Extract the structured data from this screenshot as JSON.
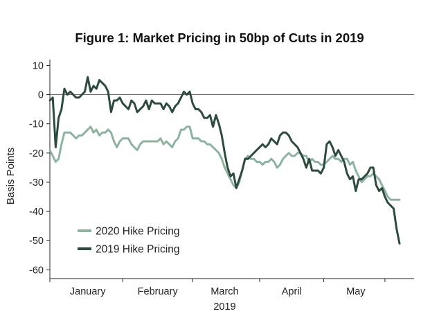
{
  "chart_data": {
    "type": "line",
    "title": "Figure 1: Market Pricing in 50bp of Cuts in 2019",
    "ylabel": "Basis Points",
    "xlabel": "2019",
    "ylim": [
      -63,
      12
    ],
    "yticks": [
      10,
      0,
      -10,
      -20,
      -30,
      -40,
      -50,
      -60
    ],
    "xlim": [
      0,
      125
    ],
    "x_categories": [
      {
        "label": "January",
        "center": 13
      },
      {
        "label": "February",
        "center": 37
      },
      {
        "label": "March",
        "center": 60
      },
      {
        "label": "April",
        "center": 83
      },
      {
        "label": "May",
        "center": 105
      }
    ],
    "x_ticks": [
      0,
      25,
      49,
      72,
      94,
      115
    ],
    "zero_line": true,
    "legend": {
      "position": "bottom-left",
      "entries": [
        "2020 Hike Pricing",
        "2019 Hike Pricing"
      ]
    },
    "series": [
      {
        "name": "2020 Hike Pricing",
        "color": "#8fb29f",
        "points": [
          [
            0,
            -19
          ],
          [
            1,
            -21
          ],
          [
            2,
            -23
          ],
          [
            3,
            -22
          ],
          [
            4,
            -17
          ],
          [
            5,
            -13
          ],
          [
            6,
            -13
          ],
          [
            7,
            -13
          ],
          [
            8,
            -14
          ],
          [
            9,
            -15
          ],
          [
            10,
            -14
          ],
          [
            11,
            -14
          ],
          [
            12,
            -13
          ],
          [
            13,
            -12
          ],
          [
            14,
            -11
          ],
          [
            15,
            -13
          ],
          [
            16,
            -12
          ],
          [
            17,
            -14
          ],
          [
            18,
            -13
          ],
          [
            19,
            -13
          ],
          [
            20,
            -12
          ],
          [
            21,
            -13
          ],
          [
            22,
            -16
          ],
          [
            23,
            -18
          ],
          [
            24,
            -16
          ],
          [
            25,
            -15
          ],
          [
            26,
            -15
          ],
          [
            27,
            -15
          ],
          [
            28,
            -17
          ],
          [
            29,
            -18
          ],
          [
            30,
            -19
          ],
          [
            31,
            -17
          ],
          [
            32,
            -16
          ],
          [
            33,
            -16
          ],
          [
            34,
            -16
          ],
          [
            35,
            -16
          ],
          [
            36,
            -16
          ],
          [
            37,
            -16
          ],
          [
            38,
            -15
          ],
          [
            39,
            -17
          ],
          [
            40,
            -16
          ],
          [
            41,
            -17
          ],
          [
            42,
            -18
          ],
          [
            43,
            -16
          ],
          [
            44,
            -15
          ],
          [
            45,
            -12
          ],
          [
            46,
            -12
          ],
          [
            47,
            -11
          ],
          [
            48,
            -11
          ],
          [
            49,
            -15
          ],
          [
            50,
            -15
          ],
          [
            51,
            -15
          ],
          [
            52,
            -16
          ],
          [
            53,
            -16
          ],
          [
            54,
            -17
          ],
          [
            55,
            -17
          ],
          [
            56,
            -18
          ],
          [
            57,
            -19
          ],
          [
            58,
            -20
          ],
          [
            59,
            -22
          ],
          [
            60,
            -25
          ],
          [
            61,
            -27
          ],
          [
            62,
            -29
          ],
          [
            63,
            -31
          ],
          [
            64,
            -32
          ],
          [
            65,
            -30
          ],
          [
            66,
            -26
          ],
          [
            67,
            -22
          ],
          [
            68,
            -21
          ],
          [
            69,
            -22
          ],
          [
            70,
            -22
          ],
          [
            71,
            -23
          ],
          [
            72,
            -23
          ],
          [
            73,
            -24
          ],
          [
            74,
            -23
          ],
          [
            75,
            -23
          ],
          [
            76,
            -22
          ],
          [
            77,
            -23
          ],
          [
            78,
            -25
          ],
          [
            79,
            -24
          ],
          [
            80,
            -22
          ],
          [
            81,
            -21
          ],
          [
            82,
            -20
          ],
          [
            83,
            -21
          ],
          [
            84,
            -21
          ],
          [
            85,
            -20
          ],
          [
            86,
            -20
          ],
          [
            87,
            -21
          ],
          [
            88,
            -21
          ],
          [
            89,
            -23
          ],
          [
            90,
            -22
          ],
          [
            91,
            -23
          ],
          [
            92,
            -23
          ],
          [
            93,
            -24
          ],
          [
            94,
            -24
          ],
          [
            95,
            -23
          ],
          [
            96,
            -22
          ],
          [
            97,
            -21
          ],
          [
            98,
            -22
          ],
          [
            99,
            -22
          ],
          [
            100,
            -23
          ],
          [
            101,
            -22
          ],
          [
            102,
            -22
          ],
          [
            103,
            -24
          ],
          [
            104,
            -23
          ],
          [
            105,
            -26
          ],
          [
            106,
            -28
          ],
          [
            107,
            -30
          ],
          [
            108,
            -29
          ],
          [
            109,
            -28
          ],
          [
            110,
            -28
          ],
          [
            111,
            -27
          ],
          [
            112,
            -28
          ],
          [
            113,
            -29
          ],
          [
            114,
            -31
          ],
          [
            115,
            -33
          ],
          [
            116,
            -35
          ],
          [
            117,
            -36
          ],
          [
            118,
            -36
          ],
          [
            119,
            -36
          ],
          [
            120,
            -36
          ]
        ]
      },
      {
        "name": "2019 Hike Pricing",
        "color": "#2e4a3d",
        "points": [
          [
            0,
            -2
          ],
          [
            1,
            -1
          ],
          [
            2,
            -18
          ],
          [
            3,
            -8
          ],
          [
            4,
            -5
          ],
          [
            5,
            2
          ],
          [
            6,
            0
          ],
          [
            7,
            1
          ],
          [
            8,
            0
          ],
          [
            9,
            -1
          ],
          [
            10,
            -1
          ],
          [
            11,
            0
          ],
          [
            12,
            1
          ],
          [
            13,
            6
          ],
          [
            14,
            1
          ],
          [
            15,
            3
          ],
          [
            16,
            2
          ],
          [
            17,
            5
          ],
          [
            18,
            4
          ],
          [
            19,
            3
          ],
          [
            20,
            1
          ],
          [
            21,
            -6
          ],
          [
            22,
            -2
          ],
          [
            23,
            -2
          ],
          [
            24,
            -1
          ],
          [
            25,
            -3
          ],
          [
            26,
            -4
          ],
          [
            27,
            -5
          ],
          [
            28,
            -2
          ],
          [
            29,
            -3
          ],
          [
            30,
            -6
          ],
          [
            31,
            -5
          ],
          [
            32,
            -4
          ],
          [
            33,
            -2
          ],
          [
            34,
            -5
          ],
          [
            35,
            -2
          ],
          [
            36,
            -3
          ],
          [
            37,
            -3
          ],
          [
            38,
            -3
          ],
          [
            39,
            -5
          ],
          [
            40,
            -3
          ],
          [
            41,
            -4
          ],
          [
            42,
            -6
          ],
          [
            43,
            -4
          ],
          [
            44,
            -3
          ],
          [
            45,
            -1
          ],
          [
            46,
            1
          ],
          [
            47,
            0
          ],
          [
            48,
            1
          ],
          [
            49,
            -3
          ],
          [
            50,
            -5
          ],
          [
            51,
            -5
          ],
          [
            52,
            -6
          ],
          [
            53,
            -8
          ],
          [
            54,
            -8
          ],
          [
            55,
            -7
          ],
          [
            56,
            -11
          ],
          [
            57,
            -7
          ],
          [
            58,
            -10
          ],
          [
            59,
            -14
          ],
          [
            60,
            -20
          ],
          [
            61,
            -25
          ],
          [
            62,
            -28
          ],
          [
            63,
            -27
          ],
          [
            64,
            -32
          ],
          [
            65,
            -29
          ],
          [
            66,
            -26
          ],
          [
            67,
            -22
          ],
          [
            68,
            -22
          ],
          [
            69,
            -21
          ],
          [
            70,
            -20
          ],
          [
            71,
            -19
          ],
          [
            72,
            -18
          ],
          [
            73,
            -17
          ],
          [
            74,
            -18
          ],
          [
            75,
            -17
          ],
          [
            76,
            -15
          ],
          [
            77,
            -16
          ],
          [
            78,
            -17
          ],
          [
            79,
            -14
          ],
          [
            80,
            -13
          ],
          [
            81,
            -13
          ],
          [
            82,
            -14
          ],
          [
            83,
            -16
          ],
          [
            84,
            -17
          ],
          [
            85,
            -18
          ],
          [
            86,
            -20
          ],
          [
            87,
            -22
          ],
          [
            88,
            -25
          ],
          [
            89,
            -22
          ],
          [
            90,
            -26
          ],
          [
            91,
            -26
          ],
          [
            92,
            -26
          ],
          [
            93,
            -27
          ],
          [
            94,
            -25
          ],
          [
            95,
            -17
          ],
          [
            96,
            -16
          ],
          [
            97,
            -18
          ],
          [
            98,
            -21
          ],
          [
            99,
            -19
          ],
          [
            100,
            -21
          ],
          [
            101,
            -23
          ],
          [
            102,
            -27
          ],
          [
            103,
            -29
          ],
          [
            104,
            -28
          ],
          [
            105,
            -33
          ],
          [
            106,
            -29
          ],
          [
            107,
            -29
          ],
          [
            108,
            -28
          ],
          [
            109,
            -27
          ],
          [
            110,
            -25
          ],
          [
            111,
            -25
          ],
          [
            112,
            -31
          ],
          [
            113,
            -33
          ],
          [
            114,
            -32
          ],
          [
            115,
            -35
          ],
          [
            116,
            -37
          ],
          [
            117,
            -38
          ],
          [
            118,
            -39
          ],
          [
            119,
            -46
          ],
          [
            120,
            -51
          ]
        ]
      }
    ]
  }
}
